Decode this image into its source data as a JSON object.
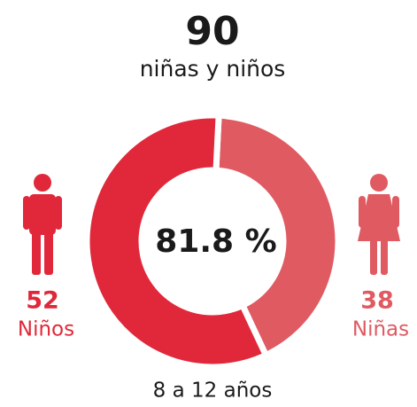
{
  "chart_data": {
    "type": "donut",
    "title": "90",
    "subtitle": "niñas y niños",
    "categories": [
      "Niños",
      "Niñas"
    ],
    "values": [
      52,
      38
    ],
    "colors": [
      "#e0283a",
      "#e05a62"
    ],
    "center_label": "81.8 %",
    "caption": "8 a 12 años"
  }
}
